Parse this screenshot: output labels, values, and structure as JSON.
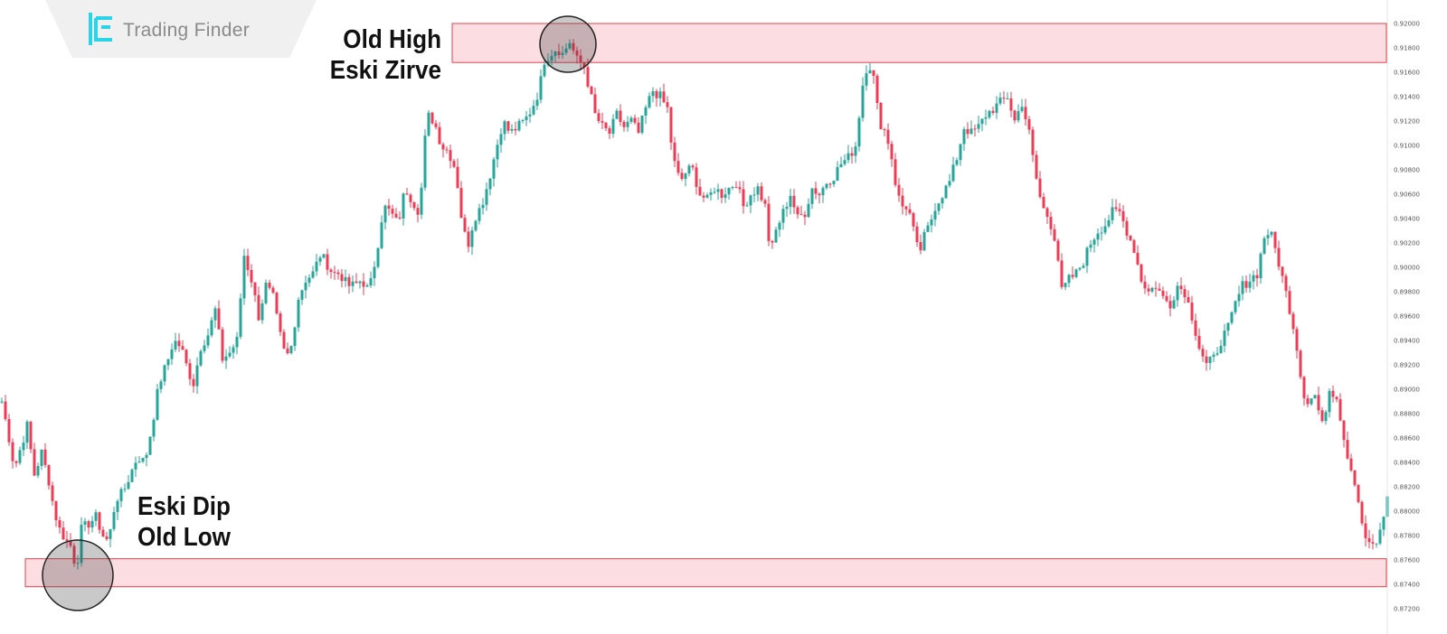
{
  "brand": {
    "name": "Trading Finder"
  },
  "annotations": {
    "high_line1": "Old High",
    "high_line2": "Eski Zirve",
    "low_line1": "Eski Dip",
    "low_line2": "Old Low"
  },
  "colors": {
    "bull": "#26a69a",
    "bear": "#ef3b54",
    "zone_fill": "#fbdde2",
    "zone_stroke": "#e0444f",
    "logo_accent": "#2ad4e6"
  },
  "chart_data": {
    "type": "candlestick",
    "price_scale_ticks": [
      "0.92000",
      "0.91800",
      "0.91600",
      "0.91400",
      "0.91200",
      "0.91000",
      "0.90800",
      "0.90600",
      "0.90400",
      "0.90200",
      "0.90000",
      "0.89800",
      "0.89600",
      "0.89400",
      "0.89200",
      "0.89000",
      "0.88800",
      "0.88600",
      "0.88400",
      "0.88200",
      "0.88000",
      "0.87800",
      "0.87600",
      "0.87400",
      "0.87200"
    ],
    "ylim": [
      0.872,
      0.92
    ],
    "zones": [
      {
        "label": "Old High / Eski Zirve",
        "from": 0.9168,
        "to": 0.92
      },
      {
        "label": "Old Low / Eski Dip",
        "from": 0.8738,
        "to": 0.8761
      }
    ],
    "close_path": [
      [
        0,
        0.889
      ],
      [
        8,
        0.886
      ],
      [
        14,
        0.8835
      ],
      [
        20,
        0.885
      ],
      [
        28,
        0.887
      ],
      [
        36,
        0.883
      ],
      [
        44,
        0.8848
      ],
      [
        52,
        0.8825
      ],
      [
        58,
        0.88
      ],
      [
        64,
        0.8785
      ],
      [
        72,
        0.8775
      ],
      [
        78,
        0.877
      ],
      [
        82,
        0.875
      ],
      [
        88,
        0.8785
      ],
      [
        96,
        0.879
      ],
      [
        104,
        0.8795
      ],
      [
        112,
        0.878
      ],
      [
        118,
        0.8775
      ],
      [
        126,
        0.881
      ],
      [
        134,
        0.8815
      ],
      [
        142,
        0.883
      ],
      [
        150,
        0.8845
      ],
      [
        158,
        0.884
      ],
      [
        166,
        0.887
      ],
      [
        174,
        0.8905
      ],
      [
        182,
        0.892
      ],
      [
        190,
        0.894
      ],
      [
        198,
        0.8935
      ],
      [
        206,
        0.8915
      ],
      [
        212,
        0.8905
      ],
      [
        220,
        0.8935
      ],
      [
        228,
        0.8945
      ],
      [
        236,
        0.8965
      ],
      [
        244,
        0.8925
      ],
      [
        252,
        0.893
      ],
      [
        260,
        0.894
      ],
      [
        268,
        0.901
      ],
      [
        276,
        0.899
      ],
      [
        284,
        0.896
      ],
      [
        292,
        0.8985
      ],
      [
        300,
        0.8975
      ],
      [
        306,
        0.895
      ],
      [
        314,
        0.8925
      ],
      [
        320,
        0.8935
      ],
      [
        328,
        0.8975
      ],
      [
        336,
        0.899
      ],
      [
        344,
        0.8995
      ],
      [
        352,
        0.901
      ],
      [
        358,
        0.9005
      ],
      [
        366,
        0.8995
      ],
      [
        374,
        0.8995
      ],
      [
        382,
        0.8985
      ],
      [
        390,
        0.8985
      ],
      [
        398,
        0.899
      ],
      [
        406,
        0.898
      ],
      [
        414,
        0.901
      ],
      [
        422,
        0.905
      ],
      [
        430,
        0.9045
      ],
      [
        438,
        0.9035
      ],
      [
        446,
        0.9065
      ],
      [
        454,
        0.9055
      ],
      [
        462,
        0.9045
      ],
      [
        470,
        0.9125
      ],
      [
        478,
        0.912
      ],
      [
        486,
        0.91
      ],
      [
        494,
        0.9095
      ],
      [
        502,
        0.908
      ],
      [
        510,
        0.903
      ],
      [
        516,
        0.902
      ],
      [
        522,
        0.904
      ],
      [
        530,
        0.905
      ],
      [
        538,
        0.907
      ],
      [
        546,
        0.9095
      ],
      [
        554,
        0.912
      ],
      [
        562,
        0.911
      ],
      [
        570,
        0.9115
      ],
      [
        578,
        0.912
      ],
      [
        586,
        0.913
      ],
      [
        594,
        0.9145
      ],
      [
        600,
        0.917
      ],
      [
        606,
        0.9175
      ],
      [
        614,
        0.918
      ],
      [
        620,
        0.9175
      ],
      [
        628,
        0.9185
      ],
      [
        636,
        0.917
      ],
      [
        644,
        0.9165
      ],
      [
        650,
        0.9145
      ],
      [
        656,
        0.9125
      ],
      [
        664,
        0.9115
      ],
      [
        672,
        0.911
      ],
      [
        680,
        0.9125
      ],
      [
        688,
        0.9115
      ],
      [
        696,
        0.912
      ],
      [
        704,
        0.911
      ],
      [
        712,
        0.913
      ],
      [
        720,
        0.9145
      ],
      [
        728,
        0.914
      ],
      [
        736,
        0.913
      ],
      [
        742,
        0.909
      ],
      [
        750,
        0.907
      ],
      [
        758,
        0.908
      ],
      [
        764,
        0.908
      ],
      [
        772,
        0.906
      ],
      [
        780,
        0.9055
      ],
      [
        788,
        0.9065
      ],
      [
        796,
        0.906
      ],
      [
        804,
        0.9065
      ],
      [
        812,
        0.907
      ],
      [
        820,
        0.905
      ],
      [
        828,
        0.906
      ],
      [
        836,
        0.9065
      ],
      [
        844,
        0.905
      ],
      [
        850,
        0.901
      ],
      [
        856,
        0.903
      ],
      [
        864,
        0.9045
      ],
      [
        872,
        0.906
      ],
      [
        880,
        0.904
      ],
      [
        888,
        0.9045
      ],
      [
        896,
        0.9065
      ],
      [
        904,
        0.906
      ],
      [
        912,
        0.907
      ],
      [
        920,
        0.9075
      ],
      [
        928,
        0.9085
      ],
      [
        936,
        0.909
      ],
      [
        944,
        0.91
      ],
      [
        952,
        0.915
      ],
      [
        958,
        0.917
      ],
      [
        964,
        0.9155
      ],
      [
        970,
        0.912
      ],
      [
        978,
        0.911
      ],
      [
        984,
        0.909
      ],
      [
        990,
        0.906
      ],
      [
        996,
        0.905
      ],
      [
        1002,
        0.905
      ],
      [
        1008,
        0.903
      ],
      [
        1014,
        0.901
      ],
      [
        1020,
        0.9025
      ],
      [
        1026,
        0.9035
      ],
      [
        1032,
        0.905
      ],
      [
        1040,
        0.906
      ],
      [
        1048,
        0.907
      ],
      [
        1056,
        0.909
      ],
      [
        1064,
        0.9115
      ],
      [
        1072,
        0.911
      ],
      [
        1080,
        0.9115
      ],
      [
        1088,
        0.9125
      ],
      [
        1096,
        0.913
      ],
      [
        1104,
        0.9135
      ],
      [
        1112,
        0.914
      ],
      [
        1120,
        0.912
      ],
      [
        1128,
        0.9135
      ],
      [
        1136,
        0.911
      ],
      [
        1142,
        0.908
      ],
      [
        1150,
        0.905
      ],
      [
        1158,
        0.904
      ],
      [
        1166,
        0.902
      ],
      [
        1172,
        0.898
      ],
      [
        1180,
        0.899
      ],
      [
        1188,
        0.8995
      ],
      [
        1196,
        0.9005
      ],
      [
        1204,
        0.902
      ],
      [
        1212,
        0.903
      ],
      [
        1220,
        0.9035
      ],
      [
        1228,
        0.9045
      ],
      [
        1236,
        0.9045
      ],
      [
        1244,
        0.903
      ],
      [
        1252,
        0.9015
      ],
      [
        1260,
        0.899
      ],
      [
        1268,
        0.898
      ],
      [
        1276,
        0.8985
      ],
      [
        1284,
        0.8975
      ],
      [
        1292,
        0.897
      ],
      [
        1300,
        0.8985
      ],
      [
        1308,
        0.898
      ],
      [
        1316,
        0.896
      ],
      [
        1324,
        0.8935
      ],
      [
        1332,
        0.892
      ],
      [
        1340,
        0.8925
      ],
      [
        1348,
        0.894
      ],
      [
        1356,
        0.895
      ],
      [
        1364,
        0.897
      ],
      [
        1372,
        0.8985
      ],
      [
        1380,
        0.899
      ],
      [
        1388,
        0.8995
      ],
      [
        1396,
        0.9025
      ],
      [
        1402,
        0.903
      ],
      [
        1410,
        0.901
      ],
      [
        1418,
        0.8985
      ],
      [
        1426,
        0.896
      ],
      [
        1432,
        0.8935
      ],
      [
        1438,
        0.89
      ],
      [
        1444,
        0.889
      ],
      [
        1452,
        0.8895
      ],
      [
        1460,
        0.887
      ],
      [
        1468,
        0.89
      ],
      [
        1476,
        0.8895
      ],
      [
        1484,
        0.886
      ],
      [
        1490,
        0.884
      ],
      [
        1496,
        0.8825
      ],
      [
        1502,
        0.88
      ],
      [
        1508,
        0.8775
      ],
      [
        1514,
        0.8775
      ],
      [
        1520,
        0.877
      ],
      [
        1526,
        0.879
      ],
      [
        1532,
        0.881
      ]
    ]
  }
}
